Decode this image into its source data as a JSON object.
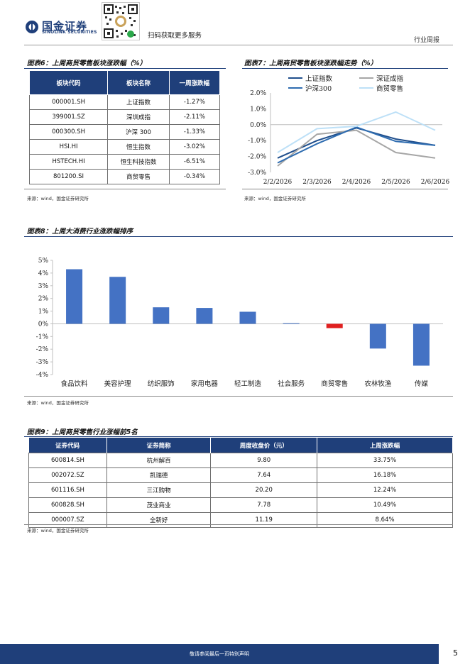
{
  "header": {
    "logo_cn": "国金证券",
    "logo_en": "SINOLINK SECURITIES",
    "scan_text": "扫码获取更多服务",
    "report_type": "行业周报"
  },
  "fig6": {
    "title": "图表6：上周商贸零售板块涨跌幅（%）",
    "headers": [
      "板块代码",
      "板块名称",
      "一周涨跌幅"
    ],
    "rows": [
      [
        "000001.SH",
        "上证指数",
        "-1.27%"
      ],
      [
        "399001.SZ",
        "深圳成指",
        "-2.11%"
      ],
      [
        "000300.SH",
        "沪深 300",
        "-1.33%"
      ],
      [
        "HSI.HI",
        "恒生指数",
        "-3.02%"
      ],
      [
        "HSTECH.HI",
        "恒生科技指数",
        "-6.51%"
      ],
      [
        "801200.SI",
        "商贸零售",
        "-0.34%"
      ]
    ],
    "source": "来源：wind，国金证券研究所"
  },
  "fig7": {
    "title": "图表7：上周商贸零售板块涨跌幅走势（%）",
    "source": "来源：wind，国金证券研究所"
  },
  "fig8": {
    "title": "图表8：上周大消费行业涨跌幅排序",
    "source": "来源：wind，国金证券研究所"
  },
  "fig9": {
    "title": "图表9：上周商贸零售行业涨幅前5名",
    "headers": [
      "证券代码",
      "证券简称",
      "周度收盘价（元）",
      "上周涨跌幅"
    ],
    "rows": [
      [
        "600814.SH",
        "杭州解百",
        "9.80",
        "33.75%"
      ],
      [
        "002072.SZ",
        "凯瑞德",
        "7.64",
        "16.18%"
      ],
      [
        "601116.SH",
        "三江购物",
        "20.20",
        "12.24%"
      ],
      [
        "600828.SH",
        "茂业商业",
        "7.78",
        "10.49%"
      ],
      [
        "000007.SZ",
        "全新好",
        "11.19",
        "8.64%"
      ]
    ],
    "source": "来源：wind，国金证券研究所"
  },
  "footer": {
    "disclaimer": "敬请参阅最后一页特别声明",
    "page": "5"
  },
  "chart_data": [
    {
      "type": "line",
      "x": [
        "2/2/2026",
        "2/3/2026",
        "2/4/2026",
        "2/5/2026",
        "2/6/2026"
      ],
      "ylim": [
        -3.0,
        2.0
      ],
      "yticks": [
        "2.0%",
        "1.0%",
        "0.0%",
        "-1.0%",
        "-2.0%",
        "-3.0%"
      ],
      "legend_position": "top",
      "series": [
        {
          "name": "上证指数",
          "color": "#1f4e8c",
          "values": [
            -2.1,
            -1.0,
            -0.2,
            -0.9,
            -1.3
          ]
        },
        {
          "name": "深证成指",
          "color": "#a6a6a6",
          "values": [
            -2.6,
            -0.6,
            -0.35,
            -1.75,
            -2.1
          ]
        },
        {
          "name": "沪深300",
          "color": "#2e6cb0",
          "values": [
            -2.4,
            -1.2,
            -0.15,
            -1.05,
            -1.3
          ]
        },
        {
          "name": "商贸零售",
          "color": "#bde0f7",
          "values": [
            -1.75,
            -0.25,
            -0.1,
            0.8,
            -0.35
          ]
        }
      ]
    },
    {
      "type": "bar",
      "categories": [
        "食品饮料",
        "美容护理",
        "纺织服饰",
        "家用电器",
        "轻工制造",
        "社会服务",
        "商贸零售",
        "农林牧渔",
        "传媒"
      ],
      "values": [
        4.3,
        3.7,
        1.3,
        1.25,
        0.95,
        0.05,
        -0.34,
        -1.95,
        -3.3
      ],
      "highlight_category": "商贸零售",
      "colors": {
        "default": "#4472c4",
        "highlight": "#e02020"
      },
      "ylim": [
        -4,
        5
      ],
      "yticks": [
        "5%",
        "4%",
        "3%",
        "2%",
        "1%",
        "0%",
        "-1%",
        "-2%",
        "-3%",
        "-4%"
      ]
    }
  ]
}
